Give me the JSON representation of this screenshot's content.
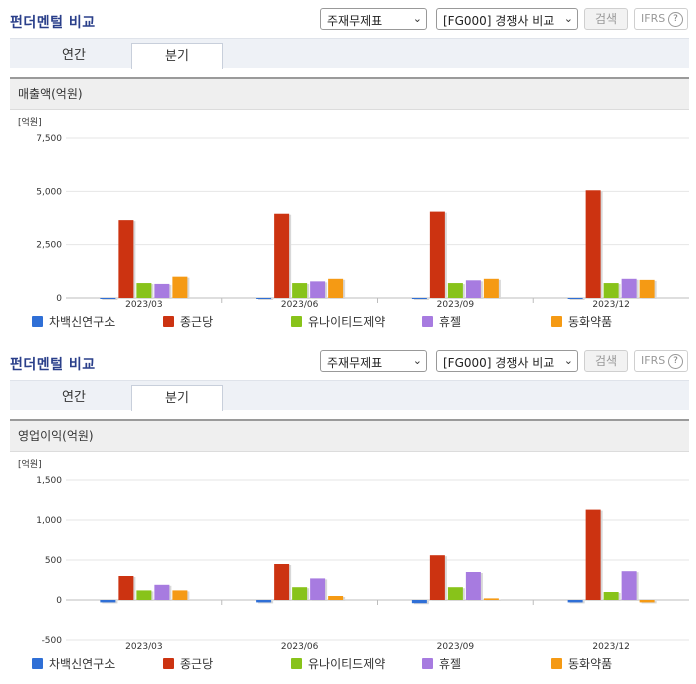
{
  "sections": [
    {
      "title": "펀더멘털 비교",
      "select_statement": "주재무제표",
      "select_compare": "[FG000] 경쟁사 비교",
      "search_label": "검색",
      "ifrs_label": "IFRS",
      "help_label": "?",
      "tabs": [
        {
          "label": "연간"
        },
        {
          "label": "분기"
        }
      ],
      "active_tab": 1,
      "panel_title": "매출액(억원)"
    },
    {
      "title": "펀더멘털 비교",
      "select_statement": "주재무제표",
      "select_compare": "[FG000] 경쟁사 비교",
      "search_label": "검색",
      "ifrs_label": "IFRS",
      "help_label": "?",
      "tabs": [
        {
          "label": "연간"
        },
        {
          "label": "분기"
        }
      ],
      "active_tab": 1,
      "panel_title": "영업이익(억원)"
    }
  ],
  "chart_data": [
    {
      "type": "bar",
      "unit_label": "[억원]",
      "categories": [
        "2023/03",
        "2023/06",
        "2023/09",
        "2023/12"
      ],
      "ylim": [
        0,
        7500
      ],
      "yticks": [
        0,
        2500,
        5000,
        7500
      ],
      "ytick_labels": [
        "0",
        "2,500",
        "5,000",
        "7,500"
      ],
      "grid": true,
      "legend_position": "bottom",
      "series": [
        {
          "name": "차백신연구소",
          "color": "#2f6fd6",
          "values": [
            0,
            0,
            0,
            0
          ]
        },
        {
          "name": "종근당",
          "color": "#cc3311",
          "values": [
            3650,
            3950,
            4050,
            5050
          ]
        },
        {
          "name": "유나이티드제약",
          "color": "#88c31a",
          "values": [
            700,
            700,
            700,
            700
          ]
        },
        {
          "name": "휴젤",
          "color": "#a77be0",
          "values": [
            660,
            780,
            830,
            900
          ]
        },
        {
          "name": "동화약품",
          "color": "#f59a14",
          "values": [
            1000,
            900,
            900,
            850
          ]
        }
      ]
    },
    {
      "type": "bar",
      "unit_label": "[억원]",
      "categories": [
        "2023/03",
        "2023/06",
        "2023/09",
        "2023/12"
      ],
      "ylim": [
        -500,
        1500
      ],
      "yticks": [
        -500,
        0,
        500,
        1000,
        1500
      ],
      "ytick_labels": [
        "-500",
        "0",
        "500",
        "1,000",
        "1,500"
      ],
      "grid": true,
      "legend_position": "bottom",
      "series": [
        {
          "name": "차백신연구소",
          "color": "#2f6fd6",
          "values": [
            -30,
            -30,
            -40,
            -30
          ]
        },
        {
          "name": "종근당",
          "color": "#cc3311",
          "values": [
            300,
            450,
            560,
            1130
          ]
        },
        {
          "name": "유나이티드제약",
          "color": "#88c31a",
          "values": [
            120,
            160,
            160,
            100
          ]
        },
        {
          "name": "휴젤",
          "color": "#a77be0",
          "values": [
            190,
            270,
            350,
            360
          ]
        },
        {
          "name": "동화약품",
          "color": "#f59a14",
          "values": [
            120,
            50,
            20,
            -30
          ]
        }
      ]
    }
  ]
}
